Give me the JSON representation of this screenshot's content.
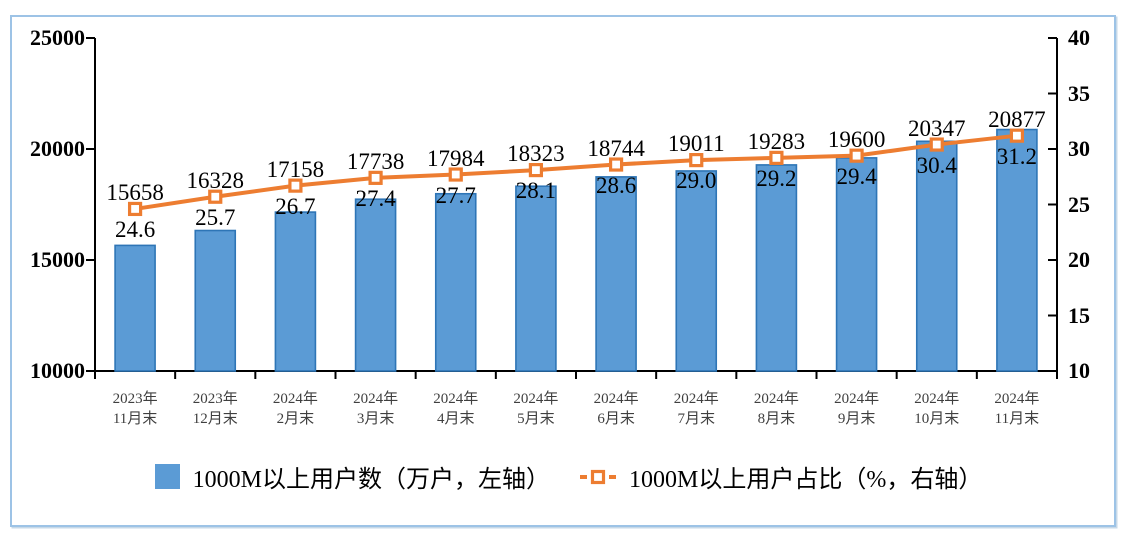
{
  "chart_data": {
    "type": "bar+line",
    "categories": [
      [
        "2023年",
        "11月末"
      ],
      [
        "2023年",
        "12月末"
      ],
      [
        "2024年",
        "2月末"
      ],
      [
        "2024年",
        "3月末"
      ],
      [
        "2024年",
        "4月末"
      ],
      [
        "2024年",
        "5月末"
      ],
      [
        "2024年",
        "6月末"
      ],
      [
        "2024年",
        "7月末"
      ],
      [
        "2024年",
        "8月末"
      ],
      [
        "2024年",
        "9月末"
      ],
      [
        "2024年",
        "10月末"
      ],
      [
        "2024年",
        "11月末"
      ]
    ],
    "series": [
      {
        "name": "1000M以上用户数（万户，左轴）",
        "type": "bar",
        "axis": "left",
        "values": [
          15658,
          16328,
          17158,
          17738,
          17984,
          18323,
          18744,
          19011,
          19283,
          19600,
          20347,
          20877
        ],
        "fill_color": "#5B9BD5",
        "border_color": "#2E75B6"
      },
      {
        "name": "1000M以上用户占比（%，右轴）",
        "type": "line",
        "axis": "right",
        "values": [
          24.6,
          25.7,
          26.7,
          27.4,
          27.7,
          28.1,
          28.6,
          29.0,
          29.2,
          29.4,
          30.4,
          31.2
        ],
        "line_color": "#ED7D31",
        "marker": "square",
        "marker_fill": "#FFFFFF",
        "decimals": 1
      }
    ],
    "left_axis": {
      "min": 10000,
      "max": 25000,
      "step": 5000,
      "ticks": [
        25000,
        20000,
        15000,
        10000
      ]
    },
    "right_axis": {
      "min": 10,
      "max": 40,
      "step": 5,
      "ticks": [
        40,
        35,
        30,
        25,
        20,
        15,
        10
      ]
    },
    "grid": false,
    "legend_position": "bottom",
    "colors": {
      "frame_border": "#9DC3E6",
      "axis_line": "#000000",
      "x_label_text": "#3F3F3F",
      "data_label_text": "#000000"
    }
  }
}
